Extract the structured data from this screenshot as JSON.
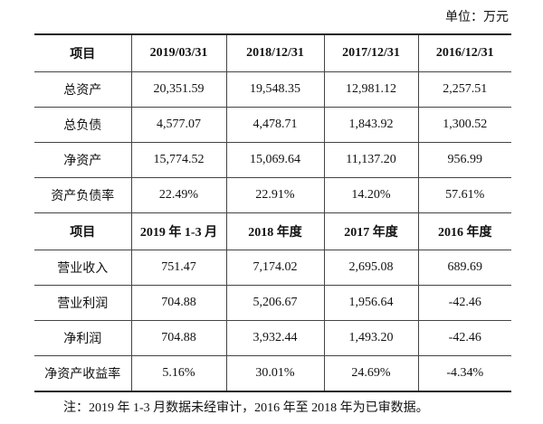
{
  "unit": "单位：万元",
  "sections": [
    {
      "header": [
        "项目",
        "2019/03/31",
        "2018/12/31",
        "2017/12/31",
        "2016/12/31"
      ],
      "rows": [
        [
          "总资产",
          "20,351.59",
          "19,548.35",
          "12,981.12",
          "2,257.51"
        ],
        [
          "总负债",
          "4,577.07",
          "4,478.71",
          "1,843.92",
          "1,300.52"
        ],
        [
          "净资产",
          "15,774.52",
          "15,069.64",
          "11,137.20",
          "956.99"
        ],
        [
          "资产负债率",
          "22.49%",
          "22.91%",
          "14.20%",
          "57.61%"
        ]
      ]
    },
    {
      "header": [
        "项目",
        "2019 年 1-3 月",
        "2018 年度",
        "2017 年度",
        "2016 年度"
      ],
      "rows": [
        [
          "营业收入",
          "751.47",
          "7,174.02",
          "2,695.08",
          "689.69"
        ],
        [
          "营业利润",
          "704.88",
          "5,206.67",
          "1,956.64",
          "-42.46"
        ],
        [
          "净利润",
          "704.88",
          "3,932.44",
          "1,493.20",
          "-42.46"
        ],
        [
          "净资产收益率",
          "5.16%",
          "30.01%",
          "24.69%",
          "-4.34%"
        ]
      ]
    }
  ],
  "note": "注：2019 年 1-3 月数据未经审计，2016 年至 2018 年为已审数据。"
}
